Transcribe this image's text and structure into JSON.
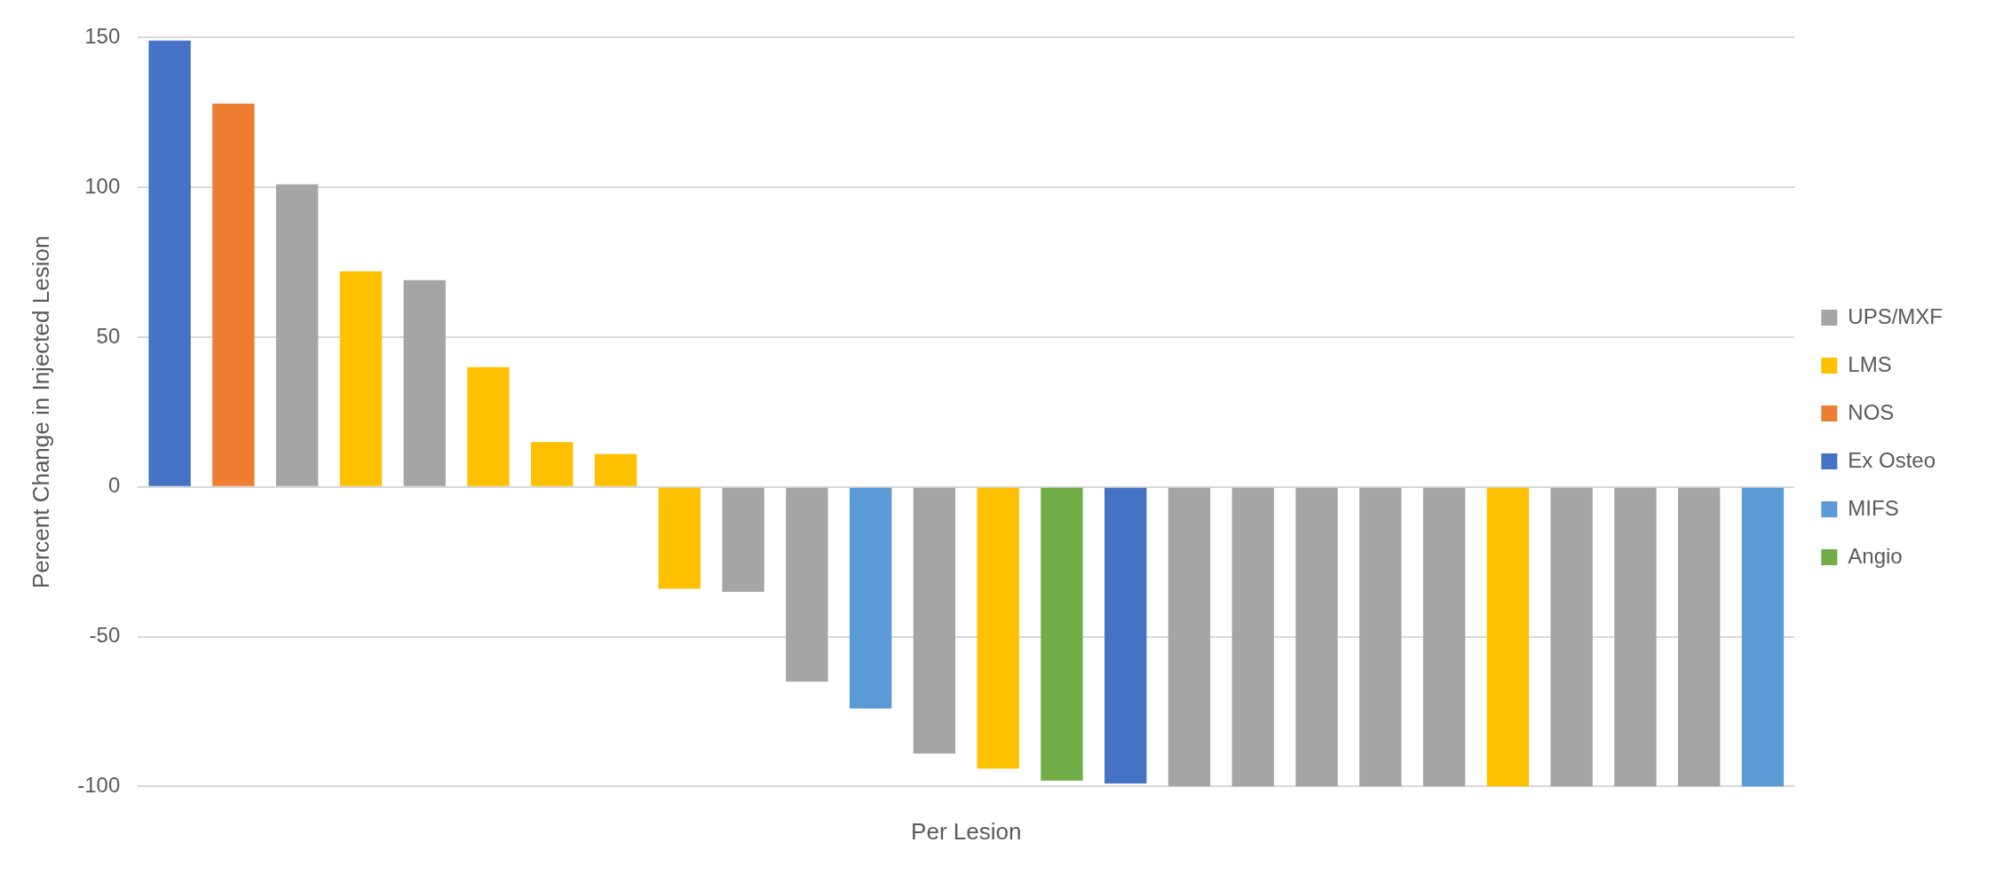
{
  "chart_data": {
    "type": "bar",
    "xlabel": "Per Lesion",
    "ylabel": "Percent Change in Injected Lesion",
    "categories": [
      null,
      null,
      null,
      null,
      null,
      null,
      null,
      null,
      null,
      null,
      null,
      null,
      null,
      null,
      null,
      null,
      null,
      null,
      null,
      null,
      null,
      null,
      null,
      null,
      null,
      null
    ],
    "series": [
      {
        "name": "UPS/MXF",
        "color": "#a5a5a5",
        "values": [
          null,
          null,
          101,
          null,
          69,
          null,
          null,
          null,
          null,
          -35,
          -65,
          null,
          -89,
          null,
          null,
          null,
          -100,
          -100,
          -100,
          -100,
          -100,
          null,
          -100,
          -100,
          -100,
          null
        ]
      },
      {
        "name": "LMS",
        "color": "#ffc000",
        "values": [
          null,
          null,
          null,
          72,
          null,
          40,
          15,
          11,
          -34,
          null,
          null,
          null,
          null,
          -94,
          null,
          null,
          null,
          null,
          null,
          null,
          null,
          -100,
          null,
          null,
          null,
          null
        ]
      },
      {
        "name": "NOS",
        "color": "#ed7d31",
        "values": [
          null,
          128,
          null,
          null,
          null,
          null,
          null,
          null,
          null,
          null,
          null,
          null,
          null,
          null,
          null,
          null,
          null,
          null,
          null,
          null,
          null,
          null,
          null,
          null,
          null,
          null
        ]
      },
      {
        "name": "Ex Osteo",
        "color": "#4472c4",
        "values": [
          149,
          null,
          null,
          null,
          null,
          null,
          null,
          null,
          null,
          null,
          null,
          null,
          null,
          null,
          null,
          -99,
          null,
          null,
          null,
          null,
          null,
          null,
          null,
          null,
          null,
          null
        ]
      },
      {
        "name": "MIFS",
        "color": "#5b9bd5",
        "values": [
          null,
          null,
          null,
          null,
          null,
          null,
          null,
          null,
          null,
          null,
          null,
          -74,
          null,
          null,
          null,
          null,
          null,
          null,
          null,
          null,
          null,
          null,
          null,
          null,
          null,
          -100
        ]
      },
      {
        "name": "Angio",
        "color": "#70ad47",
        "values": [
          null,
          null,
          null,
          null,
          null,
          null,
          null,
          null,
          null,
          null,
          null,
          null,
          null,
          null,
          -98,
          null,
          null,
          null,
          null,
          null,
          null,
          null,
          null,
          null,
          null,
          null
        ]
      }
    ],
    "ylim": [
      -100,
      150
    ],
    "yticks": [
      -100,
      -50,
      0,
      50,
      100,
      150
    ],
    "grid": "y",
    "legend": "right"
  }
}
